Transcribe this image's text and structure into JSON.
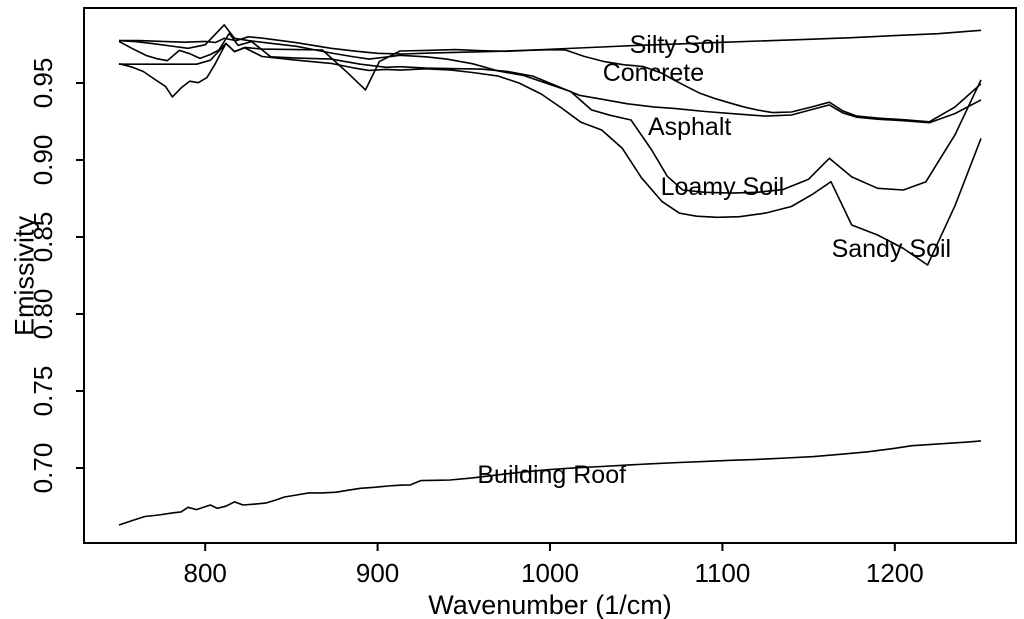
{
  "figure": {
    "background": "#ffffff",
    "line_color": "#000000",
    "text_color": "#000000"
  },
  "chart_data": {
    "type": "line",
    "title": "",
    "xlabel": "Wavenumber (1/cm)",
    "ylabel": "Emissivity",
    "xlim": [
      729.7,
      1270.3
    ],
    "ylim": [
      0.6513,
      0.9987
    ],
    "x_ticks": [
      800,
      900,
      1000,
      1100,
      1200
    ],
    "x_tick_labels": [
      "800",
      "900",
      "1000",
      "1100",
      "1200"
    ],
    "y_ticks": [
      0.7,
      0.75,
      0.8,
      0.85,
      0.9,
      0.95
    ],
    "y_tick_labels": [
      "0.70",
      "0.75",
      "0.80",
      "0.85",
      "0.90",
      "0.95"
    ],
    "grid": false,
    "legend_position": "inline-labels",
    "series": [
      {
        "name": "Silty Soil",
        "label": "Silty Soil",
        "label_anchor": {
          "x": 1074,
          "y": 0.9753
        },
        "points": [
          [
            750,
            0.9775
          ],
          [
            762,
            0.9775
          ],
          [
            775,
            0.977
          ],
          [
            788,
            0.9765
          ],
          [
            800,
            0.977
          ],
          [
            806,
            0.9763
          ],
          [
            811,
            0.979
          ],
          [
            818,
            0.9775
          ],
          [
            825,
            0.98
          ],
          [
            834,
            0.979
          ],
          [
            853,
            0.9762
          ],
          [
            873,
            0.9725
          ],
          [
            888,
            0.9706
          ],
          [
            900,
            0.9693
          ],
          [
            915,
            0.9688
          ],
          [
            930,
            0.9694
          ],
          [
            950,
            0.97
          ],
          [
            970,
            0.9706
          ],
          [
            990,
            0.9714
          ],
          [
            1010,
            0.9724
          ],
          [
            1030,
            0.9734
          ],
          [
            1050,
            0.9744
          ],
          [
            1075,
            0.9754
          ],
          [
            1100,
            0.9764
          ],
          [
            1125,
            0.9774
          ],
          [
            1150,
            0.9784
          ],
          [
            1175,
            0.9794
          ],
          [
            1200,
            0.9808
          ],
          [
            1225,
            0.982
          ],
          [
            1250,
            0.9842
          ]
        ]
      },
      {
        "name": "Concrete",
        "label": "Concrete",
        "label_anchor": {
          "x": 1060,
          "y": 0.9571
        },
        "points": [
          [
            750,
            0.9622
          ],
          [
            765,
            0.9622
          ],
          [
            780,
            0.9622
          ],
          [
            795,
            0.9622
          ],
          [
            803,
            0.9648
          ],
          [
            812,
            0.9757
          ],
          [
            817,
            0.9703
          ],
          [
            823,
            0.9731
          ],
          [
            833,
            0.972
          ],
          [
            853,
            0.9717
          ],
          [
            868,
            0.9714
          ],
          [
            882,
            0.9573
          ],
          [
            893,
            0.9455
          ],
          [
            901,
            0.9639
          ],
          [
            913,
            0.9708
          ],
          [
            928,
            0.9712
          ],
          [
            945,
            0.9717
          ],
          [
            960,
            0.971
          ],
          [
            975,
            0.9706
          ],
          [
            990,
            0.9713
          ],
          [
            1000,
            0.9716
          ],
          [
            1009,
            0.9714
          ],
          [
            1020,
            0.9672
          ],
          [
            1031,
            0.964
          ],
          [
            1043,
            0.9618
          ],
          [
            1054,
            0.9607
          ],
          [
            1065,
            0.9563
          ],
          [
            1072,
            0.9519
          ],
          [
            1080,
            0.9473
          ],
          [
            1087,
            0.9433
          ],
          [
            1096,
            0.9398
          ],
          [
            1105,
            0.9368
          ],
          [
            1113,
            0.9343
          ],
          [
            1120,
            0.9325
          ],
          [
            1129,
            0.9308
          ],
          [
            1140,
            0.9312
          ],
          [
            1152,
            0.9345
          ],
          [
            1162,
            0.9375
          ],
          [
            1170,
            0.9318
          ],
          [
            1178,
            0.9285
          ],
          [
            1190,
            0.9272
          ],
          [
            1205,
            0.9262
          ],
          [
            1220,
            0.9248
          ],
          [
            1235,
            0.9345
          ],
          [
            1250,
            0.9495
          ]
        ]
      },
      {
        "name": "Asphalt",
        "label": "Asphalt",
        "label_anchor": {
          "x": 1081,
          "y": 0.9221
        },
        "points": [
          [
            750,
            0.977
          ],
          [
            758,
            0.9722
          ],
          [
            766,
            0.9678
          ],
          [
            772,
            0.9658
          ],
          [
            778,
            0.9645
          ],
          [
            785,
            0.9712
          ],
          [
            791,
            0.969
          ],
          [
            797,
            0.966
          ],
          [
            803,
            0.9685
          ],
          [
            808,
            0.9715
          ],
          [
            814,
            0.9823
          ],
          [
            819,
            0.9745
          ],
          [
            827,
            0.9769
          ],
          [
            838,
            0.967
          ],
          [
            853,
            0.9662
          ],
          [
            873,
            0.9655
          ],
          [
            890,
            0.9622
          ],
          [
            905,
            0.9602
          ],
          [
            913,
            0.9606
          ],
          [
            928,
            0.9597
          ],
          [
            945,
            0.9593
          ],
          [
            960,
            0.959
          ],
          [
            975,
            0.9575
          ],
          [
            990,
            0.9545
          ],
          [
            1005,
            0.9475
          ],
          [
            1017,
            0.942
          ],
          [
            1030,
            0.9395
          ],
          [
            1045,
            0.9365
          ],
          [
            1060,
            0.9345
          ],
          [
            1072,
            0.9335
          ],
          [
            1090,
            0.9315
          ],
          [
            1107,
            0.93
          ],
          [
            1125,
            0.9285
          ],
          [
            1140,
            0.9292
          ],
          [
            1152,
            0.9328
          ],
          [
            1162,
            0.9358
          ],
          [
            1170,
            0.9305
          ],
          [
            1178,
            0.9278
          ],
          [
            1190,
            0.9265
          ],
          [
            1205,
            0.9255
          ],
          [
            1220,
            0.9242
          ],
          [
            1235,
            0.9302
          ],
          [
            1250,
            0.939
          ]
        ]
      },
      {
        "name": "Loamy Soil",
        "label": "Loamy Soil",
        "label_anchor": {
          "x": 1100,
          "y": 0.8831
        },
        "points": [
          [
            750,
            0.9775
          ],
          [
            760,
            0.9768
          ],
          [
            770,
            0.9755
          ],
          [
            780,
            0.974
          ],
          [
            790,
            0.9725
          ],
          [
            800,
            0.9748
          ],
          [
            811,
            0.9877
          ],
          [
            817,
            0.979
          ],
          [
            825,
            0.9775
          ],
          [
            835,
            0.9762
          ],
          [
            853,
            0.9738
          ],
          [
            873,
            0.9695
          ],
          [
            885,
            0.9672
          ],
          [
            895,
            0.9655
          ],
          [
            905,
            0.9668
          ],
          [
            913,
            0.968
          ],
          [
            928,
            0.967
          ],
          [
            940,
            0.9655
          ],
          [
            955,
            0.9625
          ],
          [
            970,
            0.9578
          ],
          [
            985,
            0.9548
          ],
          [
            1000,
            0.949
          ],
          [
            1012,
            0.9445
          ],
          [
            1024,
            0.9325
          ],
          [
            1035,
            0.929
          ],
          [
            1047,
            0.926
          ],
          [
            1059,
            0.9065
          ],
          [
            1068,
            0.8895
          ],
          [
            1077,
            0.8805
          ],
          [
            1090,
            0.879
          ],
          [
            1105,
            0.8785
          ],
          [
            1120,
            0.879
          ],
          [
            1135,
            0.8808
          ],
          [
            1150,
            0.8875
          ],
          [
            1162,
            0.9011
          ],
          [
            1175,
            0.889
          ],
          [
            1190,
            0.8816
          ],
          [
            1205,
            0.8805
          ],
          [
            1218,
            0.8858
          ],
          [
            1235,
            0.9165
          ],
          [
            1250,
            0.952
          ]
        ]
      },
      {
        "name": "Sandy Soil",
        "label": "Sandy Soil",
        "label_anchor": {
          "x": 1198,
          "y": 0.8429
        },
        "points": [
          [
            750,
            0.9625
          ],
          [
            757,
            0.9605
          ],
          [
            764,
            0.9575
          ],
          [
            771,
            0.9522
          ],
          [
            777,
            0.9478
          ],
          [
            781,
            0.941
          ],
          [
            786,
            0.9468
          ],
          [
            791,
            0.9512
          ],
          [
            796,
            0.9502
          ],
          [
            801,
            0.9535
          ],
          [
            806,
            0.9628
          ],
          [
            812,
            0.9757
          ],
          [
            817,
            0.9705
          ],
          [
            823,
            0.9728
          ],
          [
            833,
            0.9672
          ],
          [
            853,
            0.9648
          ],
          [
            873,
            0.9627
          ],
          [
            886,
            0.9598
          ],
          [
            895,
            0.9582
          ],
          [
            905,
            0.9588
          ],
          [
            913,
            0.9584
          ],
          [
            928,
            0.9592
          ],
          [
            942,
            0.9585
          ],
          [
            955,
            0.9568
          ],
          [
            970,
            0.9545
          ],
          [
            982,
            0.95
          ],
          [
            995,
            0.9428
          ],
          [
            1007,
            0.9335
          ],
          [
            1018,
            0.9245
          ],
          [
            1030,
            0.9195
          ],
          [
            1042,
            0.9075
          ],
          [
            1053,
            0.8885
          ],
          [
            1065,
            0.873
          ],
          [
            1075,
            0.8655
          ],
          [
            1085,
            0.8635
          ],
          [
            1097,
            0.8628
          ],
          [
            1110,
            0.8632
          ],
          [
            1125,
            0.8655
          ],
          [
            1140,
            0.8698
          ],
          [
            1152,
            0.8775
          ],
          [
            1163,
            0.8859
          ],
          [
            1175,
            0.8578
          ],
          [
            1190,
            0.8513
          ],
          [
            1205,
            0.8425
          ],
          [
            1219,
            0.8318
          ],
          [
            1235,
            0.8705
          ],
          [
            1250,
            0.914
          ]
        ]
      },
      {
        "name": "Building Roof",
        "label": "Building Roof",
        "label_anchor": {
          "x": 1001,
          "y": 0.6961
        },
        "points": [
          [
            750,
            0.663
          ],
          [
            758,
            0.666
          ],
          [
            765,
            0.6685
          ],
          [
            773,
            0.6695
          ],
          [
            782,
            0.671
          ],
          [
            786,
            0.6715
          ],
          [
            790,
            0.6745
          ],
          [
            795,
            0.673
          ],
          [
            799,
            0.6745
          ],
          [
            803,
            0.676
          ],
          [
            807,
            0.6738
          ],
          [
            812,
            0.6752
          ],
          [
            817,
            0.678
          ],
          [
            822,
            0.676
          ],
          [
            828,
            0.6765
          ],
          [
            835,
            0.6772
          ],
          [
            841,
            0.6792
          ],
          [
            846,
            0.6812
          ],
          [
            853,
            0.6825
          ],
          [
            860,
            0.6838
          ],
          [
            868,
            0.6838
          ],
          [
            876,
            0.6843
          ],
          [
            883,
            0.6856
          ],
          [
            890,
            0.6868
          ],
          [
            898,
            0.6875
          ],
          [
            906,
            0.6883
          ],
          [
            913,
            0.6888
          ],
          [
            919,
            0.689
          ],
          [
            925,
            0.6918
          ],
          [
            934,
            0.692
          ],
          [
            942,
            0.6922
          ],
          [
            955,
            0.6936
          ],
          [
            970,
            0.6956
          ],
          [
            985,
            0.6975
          ],
          [
            1000,
            0.699
          ],
          [
            1015,
            0.7001
          ],
          [
            1030,
            0.701
          ],
          [
            1046,
            0.702
          ],
          [
            1060,
            0.7028
          ],
          [
            1075,
            0.7036
          ],
          [
            1090,
            0.7043
          ],
          [
            1105,
            0.705
          ],
          [
            1120,
            0.7056
          ],
          [
            1137,
            0.7065
          ],
          [
            1153,
            0.7074
          ],
          [
            1170,
            0.709
          ],
          [
            1185,
            0.7106
          ],
          [
            1200,
            0.7128
          ],
          [
            1210,
            0.7145
          ],
          [
            1220,
            0.7152
          ],
          [
            1232,
            0.7161
          ],
          [
            1242,
            0.7168
          ],
          [
            1250,
            0.7176
          ]
        ]
      }
    ]
  }
}
